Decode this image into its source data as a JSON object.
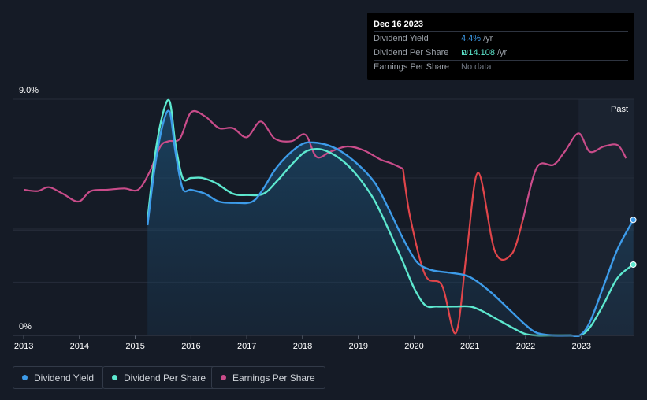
{
  "tooltip": {
    "date": "Dec 16 2023",
    "rows": [
      {
        "label": "Dividend Yield",
        "value": "4.4%",
        "unit": "/yr"
      },
      {
        "label": "Dividend Per Share",
        "value": "₪14.108",
        "unit": "/yr"
      },
      {
        "label": "Earnings Per Share",
        "value": "No data",
        "unit": ""
      }
    ]
  },
  "legend": [
    {
      "label": "Dividend Yield",
      "color": "#3d9be9"
    },
    {
      "label": "Dividend Per Share",
      "color": "#5de8cf"
    },
    {
      "label": "Earnings Per Share",
      "color": "#c94c8a"
    }
  ],
  "chart_data": {
    "type": "line",
    "y_axis_labels": [
      "9.0%",
      "0%"
    ],
    "ylim": [
      0,
      9.0
    ],
    "xlim": [
      2012.8,
      2023.95
    ],
    "x_ticks": [
      "2013",
      "2014",
      "2015",
      "2016",
      "2017",
      "2018",
      "2019",
      "2020",
      "2021",
      "2022",
      "2023"
    ],
    "x_tick_values": [
      2013,
      2014,
      2015,
      2016,
      2017,
      2018,
      2019,
      2020,
      2021,
      2022,
      2023
    ],
    "past_label": "Past",
    "past_start": 2022.95,
    "grid": true,
    "series": [
      {
        "name": "Dividend Yield",
        "color": "#3d9be9",
        "x": [
          2015.22,
          2015.35,
          2015.5,
          2015.62,
          2015.72,
          2015.85,
          2016.0,
          2016.25,
          2016.5,
          2016.8,
          2017.1,
          2017.3,
          2017.5,
          2017.75,
          2018.0,
          2018.2,
          2018.45,
          2018.7,
          2019.0,
          2019.3,
          2019.55,
          2019.8,
          2020.05,
          2020.3,
          2020.6,
          2020.9,
          2021.1,
          2021.4,
          2021.7,
          2022.0,
          2022.2,
          2022.5,
          2022.8,
          2022.97,
          2023.15,
          2023.4,
          2023.65,
          2023.93
        ],
        "values": [
          4.2,
          6.4,
          8.1,
          8.5,
          7.0,
          5.6,
          5.55,
          5.4,
          5.1,
          5.05,
          5.1,
          5.6,
          6.3,
          6.9,
          7.3,
          7.35,
          7.25,
          7.0,
          6.5,
          5.8,
          4.8,
          3.7,
          2.8,
          2.5,
          2.4,
          2.3,
          2.1,
          1.6,
          1.0,
          0.4,
          0.1,
          0.0,
          0.0,
          0.0,
          0.5,
          1.9,
          3.3,
          4.4
        ]
      },
      {
        "name": "Dividend Per Share",
        "color": "#5de8cf",
        "x": [
          2015.22,
          2015.35,
          2015.5,
          2015.62,
          2015.72,
          2015.85,
          2016.0,
          2016.2,
          2016.45,
          2016.75,
          2017.0,
          2017.3,
          2017.55,
          2017.8,
          2018.05,
          2018.3,
          2018.55,
          2018.8,
          2019.05,
          2019.3,
          2019.55,
          2019.8,
          2020.0,
          2020.2,
          2020.4,
          2020.7,
          2021.0,
          2021.2,
          2021.5,
          2021.8,
          2022.0,
          2022.2,
          2022.5,
          2022.8,
          2022.97,
          2023.15,
          2023.4,
          2023.65,
          2023.93
        ],
        "values": [
          4.4,
          6.8,
          8.5,
          8.9,
          7.3,
          6.0,
          6.0,
          6.0,
          5.8,
          5.4,
          5.35,
          5.4,
          5.9,
          6.5,
          7.0,
          7.1,
          6.9,
          6.5,
          5.9,
          5.1,
          4.0,
          2.8,
          1.8,
          1.15,
          1.1,
          1.1,
          1.1,
          0.95,
          0.6,
          0.25,
          0.05,
          0.0,
          0.0,
          0.0,
          0.0,
          0.3,
          1.2,
          2.2,
          2.7
        ]
      },
      {
        "name": "Earnings Per Share",
        "color": "#c94c8a",
        "color_alt": "#e0454a",
        "x": [
          2013.0,
          2013.25,
          2013.45,
          2013.7,
          2013.98,
          2014.2,
          2014.5,
          2014.8,
          2015.05,
          2015.25,
          2015.45,
          2015.6,
          2015.8,
          2016.0,
          2016.25,
          2016.5,
          2016.75,
          2017.0,
          2017.25,
          2017.5,
          2017.8,
          2018.05,
          2018.25,
          2018.5,
          2018.8,
          2019.1,
          2019.4,
          2019.6,
          2019.8,
          2019.93,
          2020.2,
          2020.5,
          2020.75,
          2020.95,
          2021.15,
          2021.45,
          2021.75,
          2021.95,
          2022.2,
          2022.5,
          2022.7,
          2022.95,
          2023.15,
          2023.4,
          2023.65,
          2023.8
        ],
        "values": [
          5.55,
          5.5,
          5.65,
          5.4,
          5.1,
          5.5,
          5.55,
          5.6,
          5.55,
          6.2,
          7.2,
          7.4,
          7.5,
          8.5,
          8.35,
          7.9,
          7.9,
          7.55,
          8.15,
          7.5,
          7.4,
          7.65,
          6.8,
          7.0,
          7.2,
          7.05,
          6.7,
          6.55,
          6.35,
          4.5,
          2.3,
          1.9,
          0.1,
          3.3,
          6.2,
          3.2,
          3.1,
          4.4,
          6.4,
          6.5,
          7.0,
          7.7,
          7.0,
          7.2,
          7.25,
          6.75
        ]
      }
    ]
  }
}
